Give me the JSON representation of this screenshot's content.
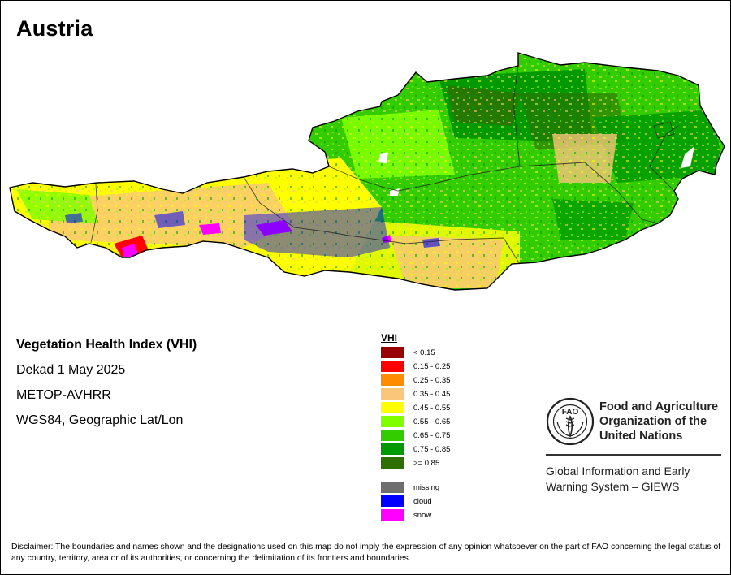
{
  "map": {
    "title": "Austria",
    "product": "Vegetation Health Index (VHI)",
    "period": "Dekad 1 May 2025",
    "sensor": "METOP-AVHRR",
    "projection": "WGS84, Geographic Lat/Lon"
  },
  "legend": {
    "title": "VHI",
    "classes": [
      {
        "label": "< 0.15",
        "color": "#990000"
      },
      {
        "label": "0.15 - 0.25",
        "color": "#ff0000"
      },
      {
        "label": "0.25 - 0.35",
        "color": "#ff8c00"
      },
      {
        "label": "0.35 - 0.45",
        "color": "#f9c67a"
      },
      {
        "label": "0.45 - 0.55",
        "color": "#ffff00"
      },
      {
        "label": "0.55 - 0.65",
        "color": "#80ff00"
      },
      {
        "label": "0.65 - 0.75",
        "color": "#33cc00"
      },
      {
        "label": "0.75 - 0.85",
        "color": "#009900"
      },
      {
        "label": ">= 0.85",
        "color": "#2e7000"
      }
    ],
    "other": [
      {
        "label": "missing",
        "color": "#6e6e6e"
      },
      {
        "label": "cloud",
        "color": "#0000ff"
      },
      {
        "label": "snow",
        "color": "#ff00ff"
      }
    ]
  },
  "organization": {
    "logo_text": "FAO",
    "name_lines": [
      "Food and Agriculture",
      "Organization of the",
      "United Nations"
    ],
    "system_lines": [
      "Global Information and Early",
      "Warning System – GIEWS"
    ]
  },
  "disclaimer": "Disclaimer: The boundaries and names shown and the designations used on this map do not imply the expression of any opinion whatsoever on the part of FAO concerning the legal status of any country, territory, area or of its authorities, or concerning the delimitation of its frontiers and boundaries."
}
